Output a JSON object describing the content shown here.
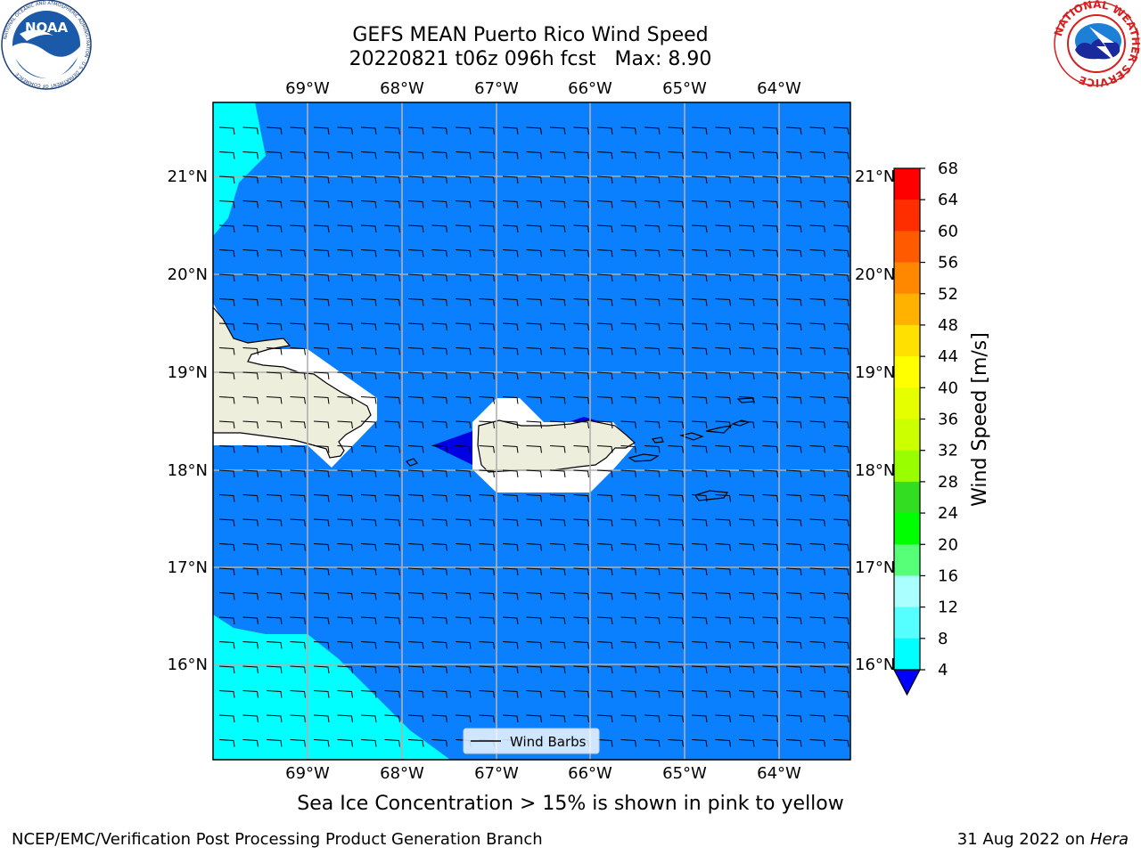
{
  "title": {
    "line1": "GEFS MEAN Puerto Rico Wind Speed",
    "line2": "20220821 t06z 096h fcst   Max: 8.90"
  },
  "logos": {
    "left": {
      "name": "noaa-logo",
      "text": "NOAA",
      "ring_text": "NATIONAL OCEANIC AND ATMOSPHERIC ADMINISTRATION · U.S. DEPARTMENT OF COMMERCE",
      "color": "#1a5aa8"
    },
    "right": {
      "name": "nws-logo",
      "ring_text": "NATIONAL WEATHER SERVICE",
      "ring_color": "#d62020",
      "inner_color": "#1e7fd6"
    }
  },
  "map": {
    "lon_labels": [
      "69°W",
      "68°W",
      "67°W",
      "66°W",
      "65°W",
      "64°W"
    ],
    "lat_labels": [
      "21°N",
      "20°N",
      "19°N",
      "18°N",
      "17°N",
      "16°N"
    ],
    "ocean_color": "#0a80ff",
    "light_color": "#00ffff",
    "land_color": "#eeeedc",
    "dark_blue_color": "#0000e0",
    "legend_label": "Wind Barbs"
  },
  "colorbar": {
    "label": "Wind Speed [m/s]",
    "ticks": [
      "68",
      "64",
      "60",
      "56",
      "52",
      "48",
      "44",
      "40",
      "36",
      "32",
      "28",
      "24",
      "20",
      "16",
      "12",
      "8",
      "4"
    ],
    "colors": [
      "#ff0000",
      "#ff2e00",
      "#ff5a00",
      "#ff8800",
      "#ffb300",
      "#ffe000",
      "#ffff00",
      "#e6ff00",
      "#ccff00",
      "#99ff00",
      "#33dd22",
      "#00ff00",
      "#55ff77",
      "#aaffff",
      "#55ffff",
      "#00ffff",
      "#0a80ff"
    ],
    "extend_color": "#0000ff"
  },
  "caption": "Sea Ice Concentration > 15% is shown in pink to yellow",
  "footer": {
    "left": "NCEP/EMC/Verification Post Processing Product Generation Branch",
    "right_prefix": "31 Aug 2022 on ",
    "right_machine": "Hera"
  }
}
